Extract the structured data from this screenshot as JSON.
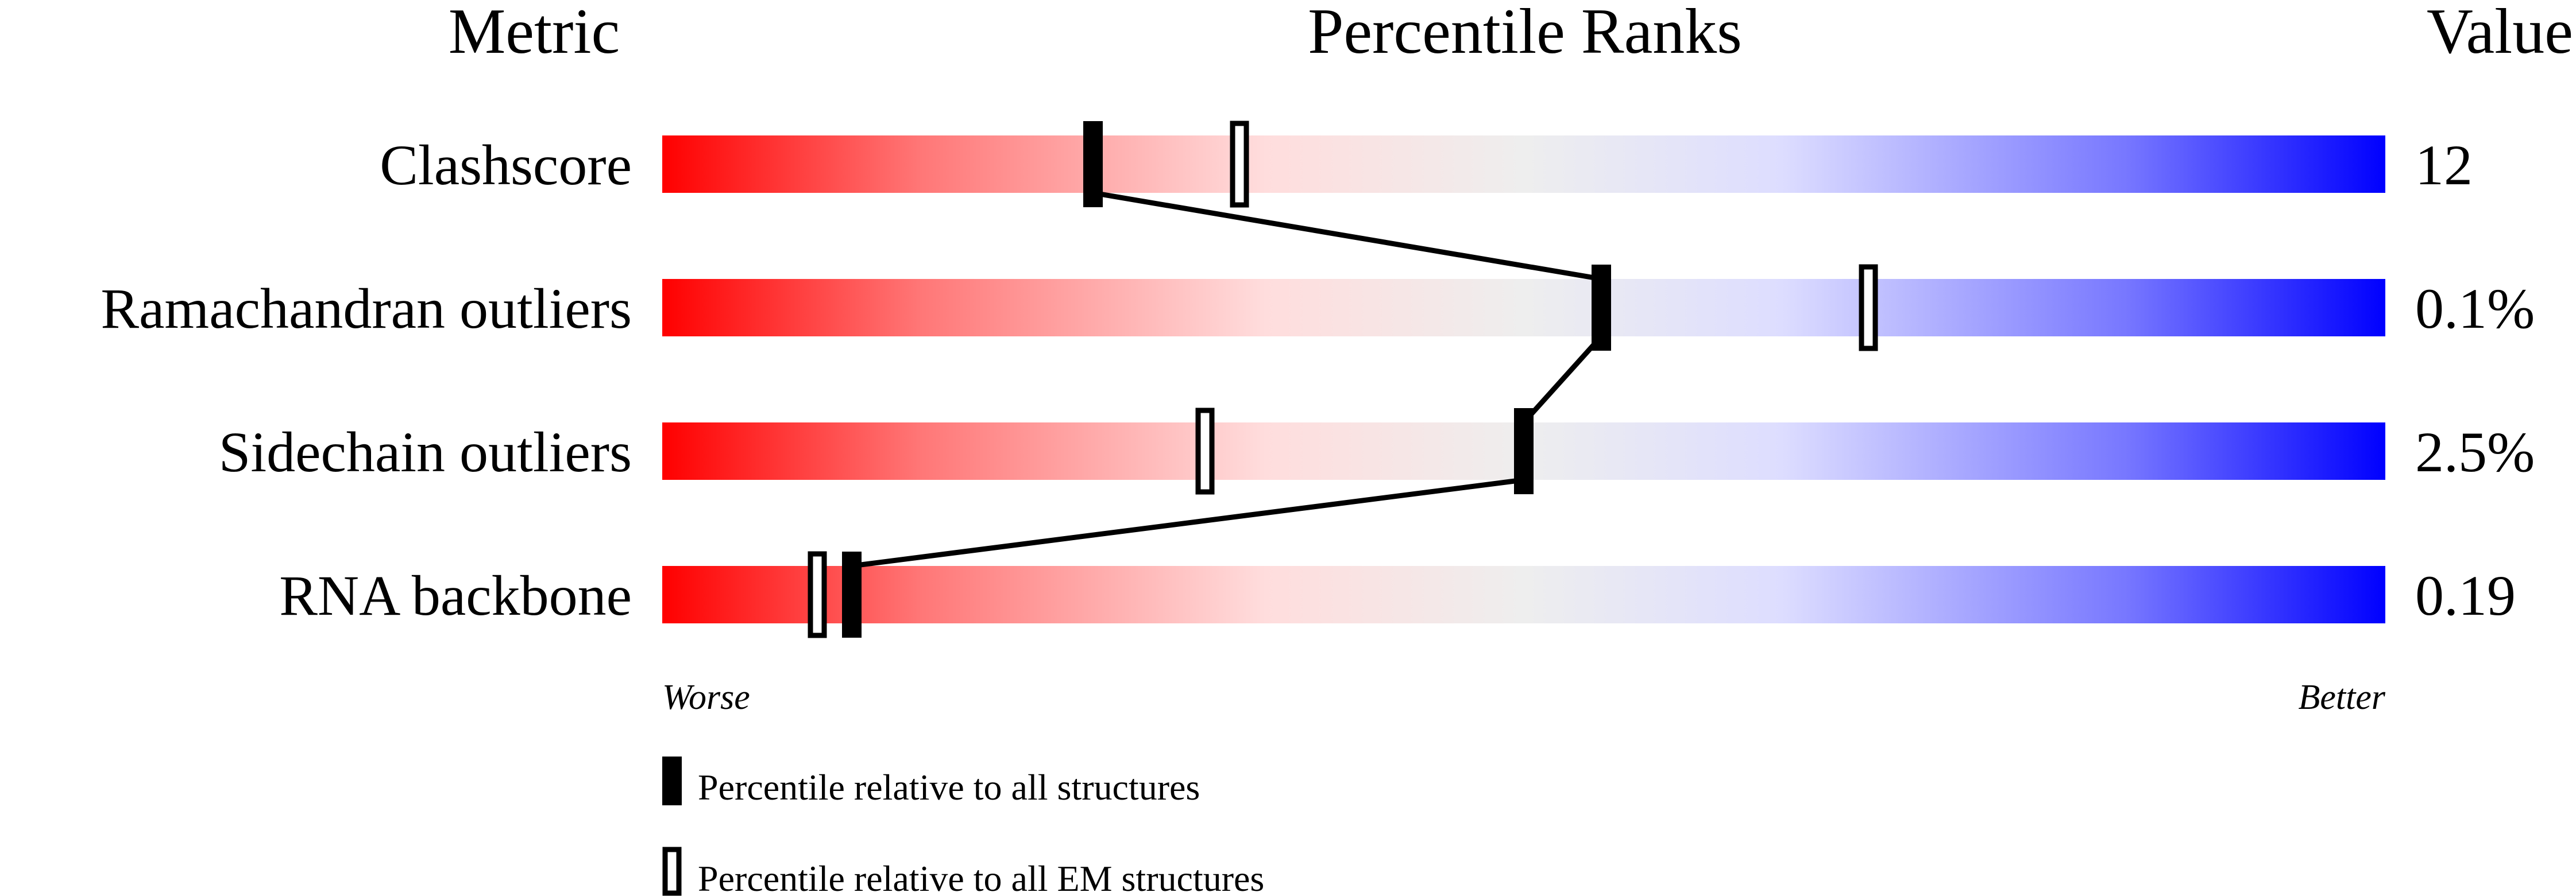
{
  "chart_data": {
    "type": "bar",
    "title": "Percentile Ranks",
    "header_left": "Metric",
    "header_right": "Value",
    "xlim": [
      0,
      100
    ],
    "scale_left_label": "Worse",
    "scale_right_label": "Better",
    "gradient_colors": [
      "#ff0000",
      "#ff7777",
      "#ffdddd",
      "#eeeeee",
      "#ddddff",
      "#7777ff",
      "#0000ff"
    ],
    "categories": [
      "Clashscore",
      "Ramachandran outliers",
      "Sidechain outliers",
      "RNA backbone"
    ],
    "values_text": [
      "12",
      "0.1%",
      "2.5%",
      "0.19"
    ],
    "series": [
      {
        "name": "Percentile relative to all structures",
        "style": "filled",
        "values": [
          25,
          54.5,
          50,
          11
        ]
      },
      {
        "name": "Percentile relative to all EM structures",
        "style": "hollow",
        "values": [
          33.5,
          70,
          31.5,
          9
        ]
      }
    ],
    "legend_placement": "bottom"
  }
}
